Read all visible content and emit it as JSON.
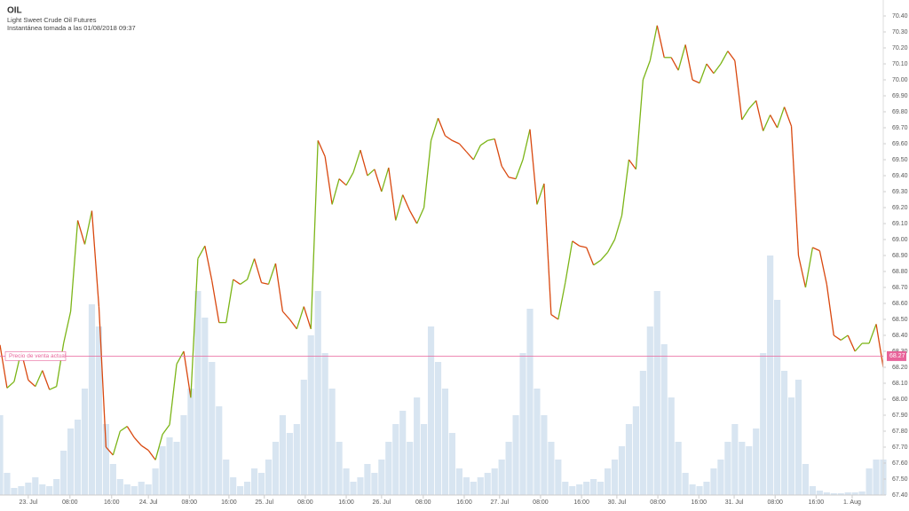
{
  "chart_data": {
    "type": "line",
    "title": "OIL",
    "subtitle": "Light Sweet Crude Oil Futures",
    "snapshot": "Instantánea tomada a las 01/08/2018 09:37",
    "up_color": "#7cb518",
    "down_color": "#d9480f",
    "volume_color": "#d8e5f1",
    "current_color": "#e8649a",
    "current_price": {
      "value": 68.27,
      "label": "Precio de venta actual"
    },
    "xlim": [
      0,
      125
    ],
    "xticks": [
      {
        "value": 4.0,
        "label": "23. Jul"
      },
      {
        "value": 9.9,
        "label": "08:00"
      },
      {
        "value": 15.8,
        "label": "16:00"
      },
      {
        "value": 21.0,
        "label": "24. Jul"
      },
      {
        "value": 26.8,
        "label": "08:00"
      },
      {
        "value": 32.4,
        "label": "16:00"
      },
      {
        "value": 37.4,
        "label": "25. Jul"
      },
      {
        "value": 43.2,
        "label": "08:00"
      },
      {
        "value": 49.0,
        "label": "16:00"
      },
      {
        "value": 54.0,
        "label": "26. Jul"
      },
      {
        "value": 59.9,
        "label": "08:00"
      },
      {
        "value": 65.7,
        "label": "16:00"
      },
      {
        "value": 70.7,
        "label": "27. Jul"
      },
      {
        "value": 76.5,
        "label": "08:00"
      },
      {
        "value": 82.3,
        "label": "16:00"
      },
      {
        "value": 87.3,
        "label": "30. Jul"
      },
      {
        "value": 93.1,
        "label": "08:00"
      },
      {
        "value": 98.9,
        "label": "16:00"
      },
      {
        "value": 103.9,
        "label": "31. Jul"
      },
      {
        "value": 109.7,
        "label": "08:00"
      },
      {
        "value": 115.5,
        "label": "16:00"
      },
      {
        "value": 120.6,
        "label": "1. Aug"
      }
    ],
    "ylim": [
      67.4,
      70.5
    ],
    "yticks": [
      {
        "value": 67.4,
        "label": "67.40"
      },
      {
        "value": 67.5,
        "label": "67.50"
      },
      {
        "value": 67.6,
        "label": "67.60"
      },
      {
        "value": 67.7,
        "label": "67.70"
      },
      {
        "value": 67.8,
        "label": "67.80"
      },
      {
        "value": 67.9,
        "label": "67.90"
      },
      {
        "value": 68,
        "label": "68.00"
      },
      {
        "value": 68.1,
        "label": "68.10"
      },
      {
        "value": 68.2,
        "label": "68.20"
      },
      {
        "value": 68.3,
        "label": "68.30"
      },
      {
        "value": 68.4,
        "label": "68.40"
      },
      {
        "value": 68.5,
        "label": "68.50"
      },
      {
        "value": 68.6,
        "label": "68.60"
      },
      {
        "value": 68.7,
        "label": "68.70"
      },
      {
        "value": 68.8,
        "label": "68.80"
      },
      {
        "value": 68.9,
        "label": "68.90"
      },
      {
        "value": 69,
        "label": "69.00"
      },
      {
        "value": 69.1,
        "label": "69.10"
      },
      {
        "value": 69.2,
        "label": "69.20"
      },
      {
        "value": 69.3,
        "label": "69.30"
      },
      {
        "value": 69.4,
        "label": "69.40"
      },
      {
        "value": 69.5,
        "label": "69.50"
      },
      {
        "value": 69.6,
        "label": "69.60"
      },
      {
        "value": 69.7,
        "label": "69.70"
      },
      {
        "value": 69.8,
        "label": "69.80"
      },
      {
        "value": 69.9,
        "label": "69.90"
      },
      {
        "value": 70,
        "label": "70.00"
      },
      {
        "value": 70.1,
        "label": "70.10"
      },
      {
        "value": 70.2,
        "label": "70.20"
      },
      {
        "value": 70.3,
        "label": "70.30"
      },
      {
        "value": 70.4,
        "label": "70.40"
      }
    ],
    "values": [
      68.34,
      68.07,
      68.11,
      68.3,
      68.12,
      68.08,
      68.18,
      68.06,
      68.08,
      68.35,
      68.55,
      69.12,
      68.97,
      69.18,
      68.58,
      67.7,
      67.65,
      67.8,
      67.83,
      67.76,
      67.71,
      67.68,
      67.62,
      67.78,
      67.84,
      68.22,
      68.3,
      68.01,
      68.88,
      68.96,
      68.74,
      68.48,
      68.48,
      68.75,
      68.72,
      68.75,
      68.88,
      68.73,
      68.72,
      68.85,
      68.55,
      68.5,
      68.44,
      68.58,
      68.44,
      69.62,
      69.52,
      69.22,
      69.38,
      69.34,
      69.42,
      69.56,
      69.4,
      69.44,
      69.3,
      69.45,
      69.12,
      69.28,
      69.18,
      69.1,
      69.2,
      69.62,
      69.76,
      69.65,
      69.62,
      69.6,
      69.55,
      69.5,
      69.59,
      69.62,
      69.63,
      69.46,
      69.39,
      69.38,
      69.5,
      69.69,
      69.22,
      69.35,
      68.53,
      68.5,
      68.73,
      68.99,
      68.96,
      68.95,
      68.84,
      68.87,
      68.92,
      69.0,
      69.15,
      69.5,
      69.44,
      70.0,
      70.12,
      70.34,
      70.14,
      70.14,
      70.06,
      70.22,
      70.0,
      69.98,
      70.1,
      70.04,
      70.1,
      70.18,
      70.12,
      69.75,
      69.82,
      69.87,
      69.68,
      69.78,
      69.7,
      69.83,
      69.71,
      68.9,
      68.7,
      68.95,
      68.93,
      68.72,
      68.4,
      68.37,
      68.4,
      68.3,
      68.35,
      68.35,
      68.47,
      68.2
    ],
    "volume_ylim": [
      0,
      558
    ],
    "volume": [
      90,
      25,
      8,
      10,
      14,
      20,
      12,
      10,
      18,
      50,
      75,
      85,
      120,
      215,
      190,
      80,
      35,
      18,
      12,
      10,
      15,
      12,
      30,
      55,
      65,
      60,
      90,
      120,
      230,
      200,
      150,
      100,
      40,
      20,
      10,
      15,
      30,
      25,
      40,
      60,
      90,
      70,
      80,
      130,
      180,
      230,
      160,
      120,
      60,
      30,
      15,
      20,
      35,
      25,
      40,
      60,
      80,
      95,
      60,
      110,
      80,
      190,
      150,
      120,
      70,
      30,
      20,
      15,
      20,
      25,
      30,
      40,
      60,
      90,
      160,
      210,
      120,
      90,
      60,
      40,
      15,
      10,
      12,
      15,
      18,
      15,
      30,
      40,
      55,
      80,
      100,
      140,
      190,
      230,
      170,
      110,
      60,
      25,
      12,
      10,
      15,
      30,
      40,
      60,
      80,
      60,
      55,
      75,
      160,
      270,
      220,
      140,
      110,
      130,
      35,
      10,
      5,
      3,
      2,
      2,
      3,
      3,
      4,
      30,
      40,
      40
    ]
  }
}
